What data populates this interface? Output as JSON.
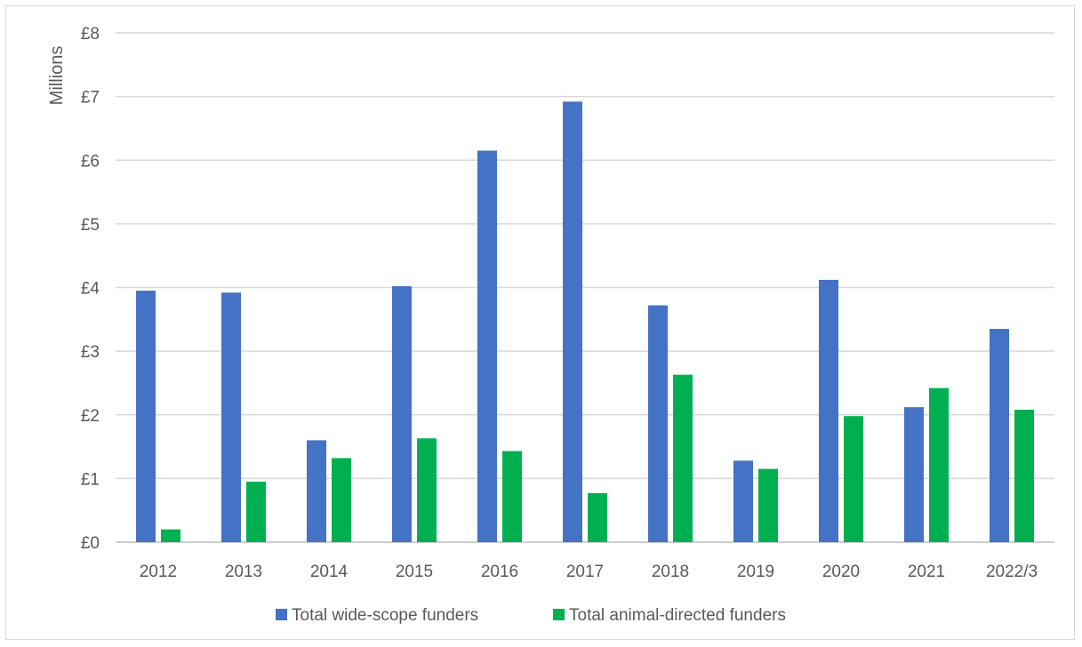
{
  "chart_data": {
    "type": "bar",
    "title": "",
    "xlabel": "",
    "ylabel": "Millions",
    "ylim": [
      0,
      8
    ],
    "ytick_step": 1,
    "ytick_prefix": "£",
    "grid": true,
    "legend_position": "bottom",
    "categories": [
      "2012",
      "2013",
      "2014",
      "2015",
      "2016",
      "2017",
      "2018",
      "2019",
      "2020",
      "2021",
      "2022/3"
    ],
    "series": [
      {
        "name": "Total wide-scope funders",
        "color": "#4472c4",
        "values": [
          3.95,
          3.92,
          1.6,
          4.02,
          6.15,
          6.92,
          3.72,
          1.28,
          4.12,
          2.12,
          3.35
        ]
      },
      {
        "name": "Total animal-directed funders",
        "color": "#00b050",
        "values": [
          0.2,
          0.95,
          1.32,
          1.63,
          1.43,
          0.77,
          2.63,
          1.15,
          1.98,
          2.42,
          2.08
        ]
      }
    ]
  }
}
